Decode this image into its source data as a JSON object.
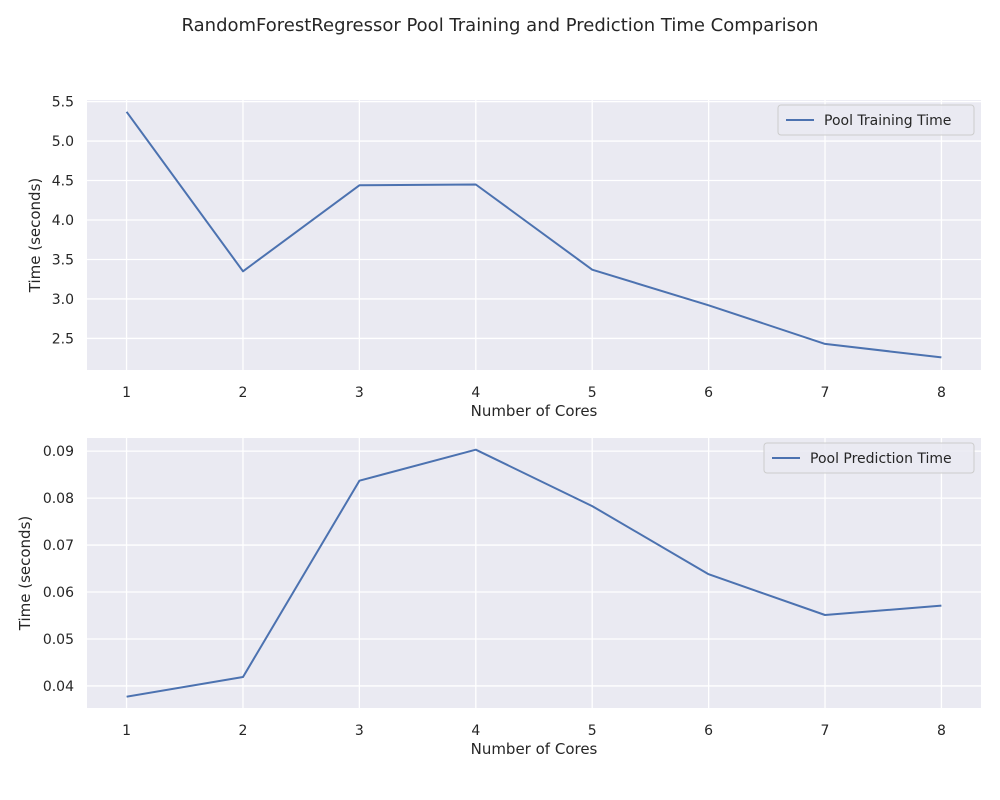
{
  "figure": {
    "title": "RandomForestRegressor Pool Training and Prediction Time Comparison"
  },
  "chart_data": [
    {
      "type": "line",
      "title": "",
      "xlabel": "Number of Cores",
      "ylabel": "Time (seconds)",
      "x": [
        1,
        2,
        3,
        4,
        5,
        6,
        7,
        8
      ],
      "xticks": [
        "1",
        "2",
        "3",
        "4",
        "5",
        "6",
        "7",
        "8"
      ],
      "xlim": [
        0.66,
        8.34
      ],
      "ylim": [
        2.1,
        5.52
      ],
      "yticks": [
        "2.5",
        "3.0",
        "3.5",
        "4.0",
        "4.5",
        "5.0",
        "5.5"
      ],
      "ytick_values": [
        2.5,
        3.0,
        3.5,
        4.0,
        4.5,
        5.0,
        5.5
      ],
      "series": [
        {
          "name": "Pool Training Time",
          "values": [
            5.37,
            3.35,
            4.44,
            4.45,
            3.37,
            2.92,
            2.43,
            2.26
          ],
          "color": "#4c72b0"
        }
      ],
      "legend": "upper-right",
      "grid": true,
      "background": "#eaeaf2"
    },
    {
      "type": "line",
      "title": "",
      "xlabel": "Number of Cores",
      "ylabel": "Time (seconds)",
      "x": [
        1,
        2,
        3,
        4,
        5,
        6,
        7,
        8
      ],
      "xticks": [
        "1",
        "2",
        "3",
        "4",
        "5",
        "6",
        "7",
        "8"
      ],
      "xlim": [
        0.66,
        8.34
      ],
      "ylim": [
        0.0353,
        0.0928
      ],
      "yticks": [
        "0.04",
        "0.05",
        "0.06",
        "0.07",
        "0.08",
        "0.09"
      ],
      "ytick_values": [
        0.04,
        0.05,
        0.06,
        0.07,
        0.08,
        0.09
      ],
      "series": [
        {
          "name": "Pool Prediction Time",
          "values": [
            0.0377,
            0.0419,
            0.0837,
            0.0903,
            0.0783,
            0.0638,
            0.0551,
            0.0571
          ],
          "color": "#4c72b0"
        }
      ],
      "legend": "upper-right",
      "grid": true,
      "background": "#eaeaf2"
    }
  ]
}
